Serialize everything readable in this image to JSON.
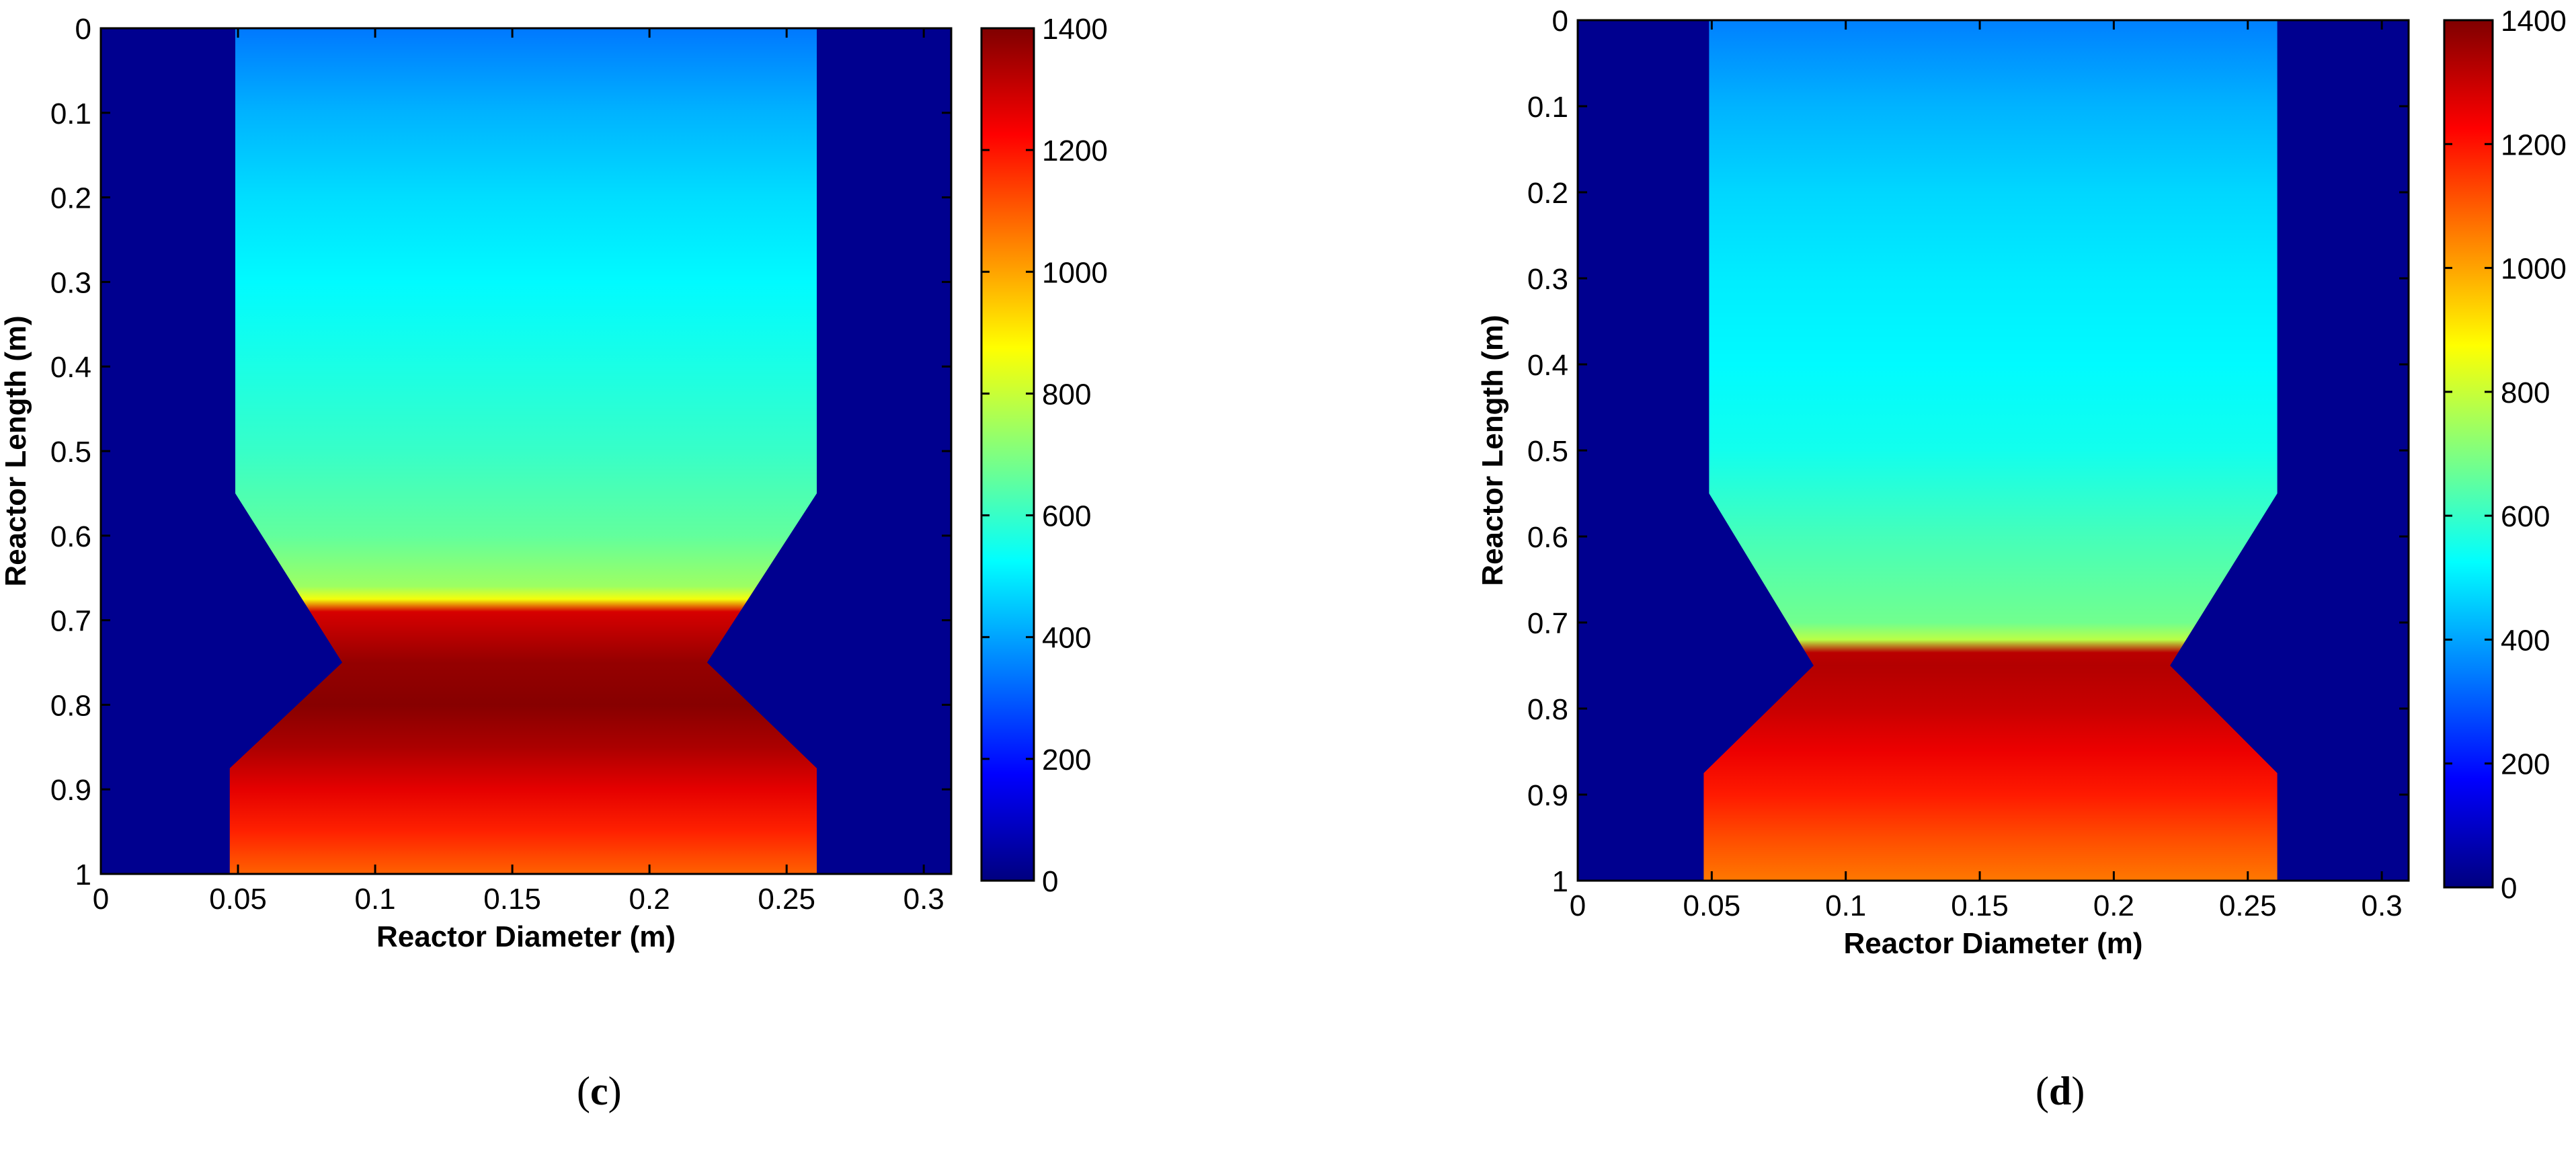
{
  "panel_labels": [
    {
      "open": "(",
      "letter": "c",
      "close": ")"
    },
    {
      "open": "(",
      "letter": "d",
      "close": ")"
    }
  ],
  "colormap": "jet",
  "colors": {
    "background": "#00008F",
    "axis": "#000000"
  },
  "chart_data": [
    {
      "type": "heatmap",
      "panel": "c",
      "xlabel": "Reactor Diameter (m)",
      "ylabel": "Reactor Length (m)",
      "xlim": [
        0,
        0.31
      ],
      "ylim": [
        0,
        1
      ],
      "y_reversed": true,
      "x_ticks": [
        "0",
        "0.05",
        "0.1",
        "0.15",
        "0.2",
        "0.25",
        "0.3"
      ],
      "y_ticks": [
        "0",
        "0.1",
        "0.2",
        "0.3",
        "0.4",
        "0.5",
        "0.6",
        "0.7",
        "0.8",
        "0.9",
        "1"
      ],
      "colorbar": {
        "min": 0,
        "max": 1400,
        "ticks": [
          "0",
          "200",
          "400",
          "600",
          "800",
          "1000",
          "1200",
          "1400"
        ]
      },
      "reactor_profile": {
        "y": [
          0,
          0.55,
          0.75,
          0.875,
          1.0
        ],
        "x_left": [
          0.049,
          0.049,
          0.088,
          0.047,
          0.047
        ],
        "x_right": [
          0.261,
          0.261,
          0.221,
          0.261,
          0.261
        ]
      },
      "temperature_profile": {
        "y": [
          0,
          0.1,
          0.2,
          0.3,
          0.4,
          0.5,
          0.6,
          0.66,
          0.675,
          0.69,
          0.75,
          0.8,
          0.85,
          0.9,
          0.95,
          1.0
        ],
        "value": [
          340,
          420,
          480,
          520,
          560,
          600,
          660,
          740,
          860,
          1280,
          1370,
          1390,
          1340,
          1260,
          1180,
          1090
        ]
      }
    },
    {
      "type": "heatmap",
      "panel": "d",
      "xlabel": "Reactor Diameter (m)",
      "ylabel": "Reactor Length (m)",
      "xlim": [
        0,
        0.31
      ],
      "ylim": [
        0,
        1
      ],
      "y_reversed": true,
      "x_ticks": [
        "0",
        "0.05",
        "0.1",
        "0.15",
        "0.2",
        "0.25",
        "0.3"
      ],
      "y_ticks": [
        "0",
        "0.1",
        "0.2",
        "0.3",
        "0.4",
        "0.5",
        "0.6",
        "0.7",
        "0.8",
        "0.9",
        "1"
      ],
      "colorbar": {
        "min": 0,
        "max": 1400,
        "ticks": [
          "0",
          "200",
          "400",
          "600",
          "800",
          "1000",
          "1200",
          "1400"
        ]
      },
      "reactor_profile": {
        "y": [
          0,
          0.55,
          0.75,
          0.875,
          1.0
        ],
        "x_left": [
          0.049,
          0.049,
          0.088,
          0.047,
          0.047
        ],
        "x_right": [
          0.261,
          0.261,
          0.221,
          0.261,
          0.261
        ]
      },
      "temperature_profile": {
        "y": [
          0,
          0.1,
          0.2,
          0.3,
          0.4,
          0.5,
          0.6,
          0.7,
          0.72,
          0.735,
          0.75,
          0.8,
          0.85,
          0.9,
          0.95,
          1.0
        ],
        "value": [
          350,
          420,
          470,
          500,
          520,
          550,
          620,
          680,
          780,
          1320,
          1330,
          1300,
          1250,
          1190,
          1120,
          1060
        ]
      }
    }
  ]
}
